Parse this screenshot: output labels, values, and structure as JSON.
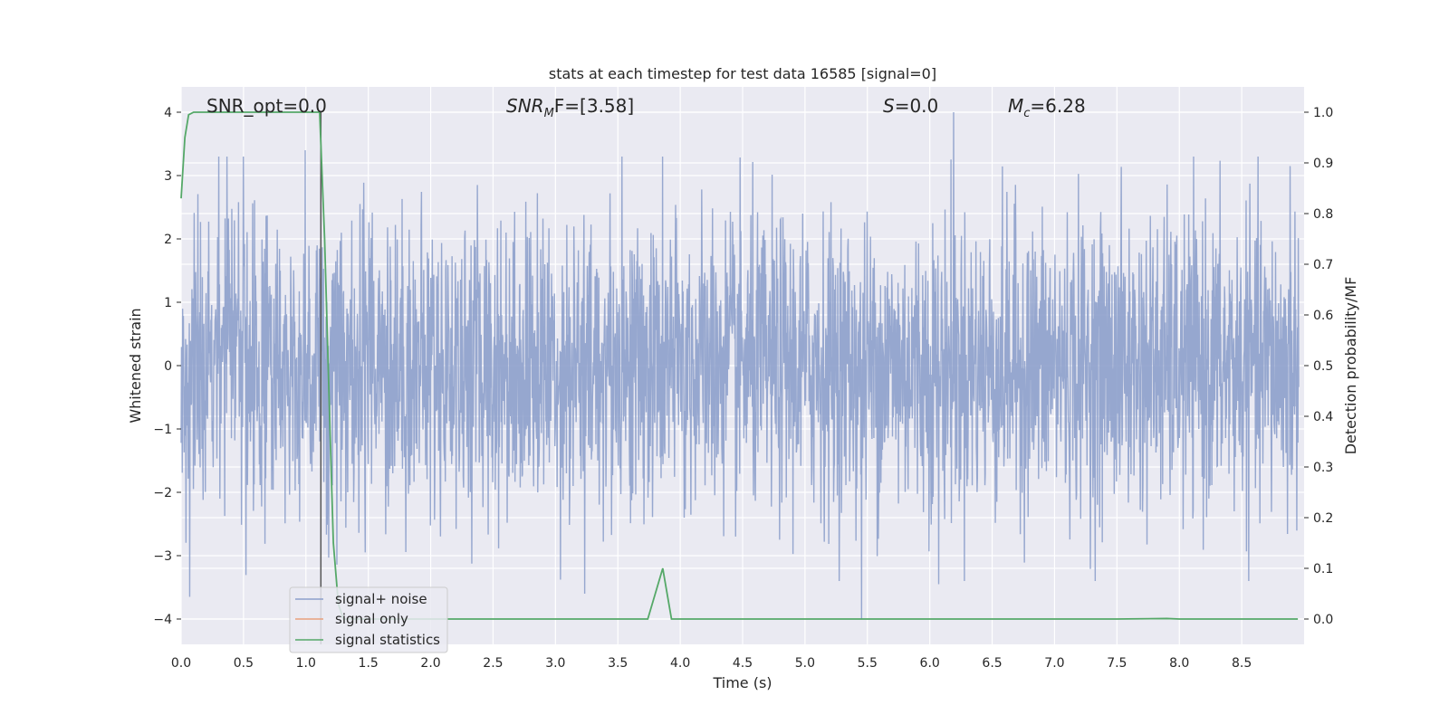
{
  "chart_data": {
    "type": "line",
    "title": "stats at each timestep for test data 16585 [signal=0]",
    "xlabel": "Time (s)",
    "ylabel": "Whitened strain",
    "ylabel_right": "Detection probability/MF",
    "xlim": [
      0.0,
      9.0
    ],
    "ylim": [
      -4.4,
      4.4
    ],
    "ylim_right": [
      -0.05,
      1.05
    ],
    "x_ticks": [
      "0.0",
      "0.5",
      "1.0",
      "1.5",
      "2.0",
      "2.5",
      "3.0",
      "3.5",
      "4.0",
      "4.5",
      "5.0",
      "5.5",
      "6.0",
      "6.5",
      "7.0",
      "7.5",
      "8.0",
      "8.5"
    ],
    "y_ticks": [
      "−4",
      "−3",
      "−2",
      "−1",
      "0",
      "1",
      "2",
      "3",
      "4"
    ],
    "y_ticks_right": [
      "0.0",
      "0.1",
      "0.2",
      "0.3",
      "0.4",
      "0.5",
      "0.6",
      "0.7",
      "0.8",
      "0.9",
      "1.0"
    ],
    "grid": true,
    "legend_position": "lower-left",
    "marker_time": 1.12,
    "annotations": {
      "snr_opt": "SNR_opt=0.0",
      "snr_mf_main": "SNR",
      "snr_mf_sub": "M",
      "snr_mf_rest": "F=[3.58]",
      "s_main": "S",
      "s_rest": "=0.0",
      "mc_main": "M",
      "mc_sub": "c",
      "mc_rest": "=6.28"
    },
    "series": [
      {
        "name": "signal+ noise",
        "color": "#8da0cb",
        "axis": "left",
        "style": "dense noise, roughly ±2.2 typical with peaks near ±3.5",
        "peaks": [
          {
            "x": 6.22,
            "y": 4.0
          },
          {
            "x": 1.0,
            "y": 3.4
          },
          {
            "x": 3.55,
            "y": 3.3
          },
          {
            "x": 8.93,
            "y": 3.15
          },
          {
            "x": 0.5,
            "y": 3.3
          },
          {
            "x": 5.48,
            "y": -4.0
          },
          {
            "x": 3.25,
            "y": -3.6
          },
          {
            "x": 0.07,
            "y": -3.65
          },
          {
            "x": 6.1,
            "y": -3.45
          }
        ]
      },
      {
        "name": "signal only",
        "color": "#e8a07c",
        "axis": "left",
        "x": [],
        "y": []
      },
      {
        "name": "signal statistics",
        "color": "#55a868",
        "axis": "right",
        "x": [
          0.0,
          0.03,
          0.06,
          0.1,
          0.15,
          0.3,
          0.6,
          1.0,
          1.11,
          1.15,
          1.19,
          1.22,
          1.26,
          1.3,
          1.5,
          2.0,
          3.0,
          3.74,
          3.86,
          3.93,
          4.5,
          5.5,
          6.5,
          7.5,
          7.9,
          8.0,
          8.95
        ],
        "y": [
          0.83,
          0.95,
          0.995,
          1.0,
          1.0,
          1.0,
          1.0,
          1.0,
          1.0,
          0.75,
          0.4,
          0.15,
          0.03,
          0.0,
          0.0,
          0.0,
          0.0,
          0.0,
          0.1,
          0.0,
          0.0,
          0.0,
          0.0,
          0.0,
          0.001,
          0.0,
          0.0
        ]
      }
    ]
  }
}
